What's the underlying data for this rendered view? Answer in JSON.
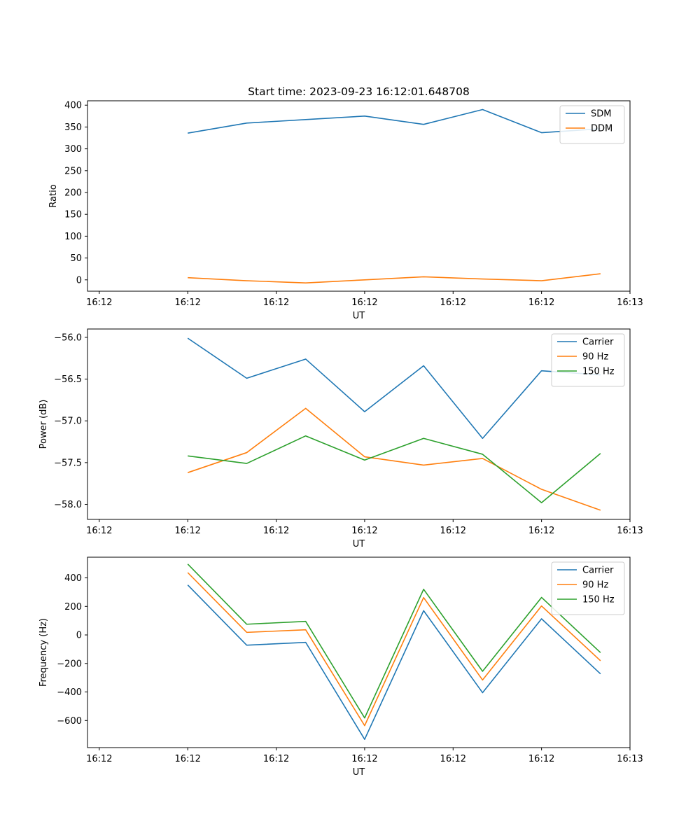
{
  "title": "Start time: 2023-09-23 16:12:01.648708",
  "colors": {
    "blue": "#1f77b4",
    "orange": "#ff7f0e",
    "green": "#2ca02c"
  },
  "chart_data": [
    {
      "type": "line",
      "title": "Start time: 2023-09-23 16:12:01.648708",
      "xlabel": "UT",
      "ylabel": "Ratio",
      "x": [
        1,
        2,
        3,
        4,
        5,
        6,
        7,
        8
      ],
      "xlim": [
        -0.7,
        8.5
      ],
      "xticks": [
        -0.5,
        1,
        2.5,
        4,
        5.5,
        7,
        8.5
      ],
      "xtick_labels": [
        "16:12",
        "16:12",
        "16:12",
        "16:12",
        "16:12",
        "16:12",
        "16:13"
      ],
      "ylim": [
        -26,
        410
      ],
      "yticks": [
        0,
        50,
        100,
        150,
        200,
        250,
        300,
        350,
        400
      ],
      "ytick_labels": [
        "0",
        "50",
        "100",
        "150",
        "200",
        "250",
        "300",
        "350",
        "400"
      ],
      "legend": "top-right",
      "series": [
        {
          "name": "SDM",
          "color": "#1f77b4",
          "values": [
            336,
            359,
            367,
            375,
            356,
            390,
            337,
            346
          ]
        },
        {
          "name": "DDM",
          "color": "#ff7f0e",
          "values": [
            5,
            -2,
            -7,
            0,
            7,
            2,
            -2,
            14
          ]
        }
      ]
    },
    {
      "type": "line",
      "title": "",
      "xlabel": "UT",
      "ylabel": "Power (dB)",
      "x": [
        1,
        2,
        3,
        4,
        5,
        6,
        7,
        8
      ],
      "xlim": [
        -0.7,
        8.5
      ],
      "xticks": [
        -0.5,
        1,
        2.5,
        4,
        5.5,
        7,
        8.5
      ],
      "xtick_labels": [
        "16:12",
        "16:12",
        "16:12",
        "16:12",
        "16:12",
        "16:12",
        "16:13"
      ],
      "ylim": [
        -58.18,
        -55.9
      ],
      "yticks": [
        -58.0,
        -57.5,
        -57.0,
        -56.5,
        -56.0
      ],
      "ytick_labels": [
        "−58.0",
        "−57.5",
        "−57.0",
        "−56.5",
        "−56.0"
      ],
      "legend": "top-right",
      "series": [
        {
          "name": "Carrier",
          "color": "#1f77b4",
          "values": [
            -56.01,
            -56.49,
            -56.26,
            -56.89,
            -56.34,
            -57.21,
            -56.4,
            -56.45
          ]
        },
        {
          "name": "90 Hz",
          "color": "#ff7f0e",
          "values": [
            -57.62,
            -57.38,
            -56.85,
            -57.43,
            -57.53,
            -57.45,
            -57.82,
            -58.07
          ]
        },
        {
          "name": "150 Hz",
          "color": "#2ca02c",
          "values": [
            -57.42,
            -57.51,
            -57.18,
            -57.47,
            -57.21,
            -57.4,
            -57.98,
            -57.39
          ]
        }
      ]
    },
    {
      "type": "line",
      "title": "",
      "xlabel": "UT",
      "ylabel": "Frequency (Hz)",
      "x": [
        1,
        2,
        3,
        4,
        5,
        6,
        7,
        8
      ],
      "xlim": [
        -0.7,
        8.5
      ],
      "xticks": [
        -0.5,
        1,
        2.5,
        4,
        5.5,
        7,
        8.5
      ],
      "xtick_labels": [
        "16:12",
        "16:12",
        "16:12",
        "16:12",
        "16:12",
        "16:12",
        "16:13"
      ],
      "ylim": [
        -790,
        545
      ],
      "yticks": [
        -600,
        -400,
        -200,
        0,
        200,
        400
      ],
      "ytick_labels": [
        "−600",
        "−400",
        "−200",
        "0",
        "200",
        "400"
      ],
      "legend": "top-right",
      "series": [
        {
          "name": "Carrier",
          "color": "#1f77b4",
          "values": [
            350,
            -72,
            -52,
            -732,
            170,
            -405,
            113,
            -273
          ]
        },
        {
          "name": "90 Hz",
          "color": "#ff7f0e",
          "values": [
            437,
            18,
            36,
            -636,
            262,
            -316,
            203,
            -181
          ]
        },
        {
          "name": "150 Hz",
          "color": "#2ca02c",
          "values": [
            497,
            75,
            95,
            -582,
            320,
            -255,
            263,
            -124
          ]
        }
      ]
    }
  ]
}
